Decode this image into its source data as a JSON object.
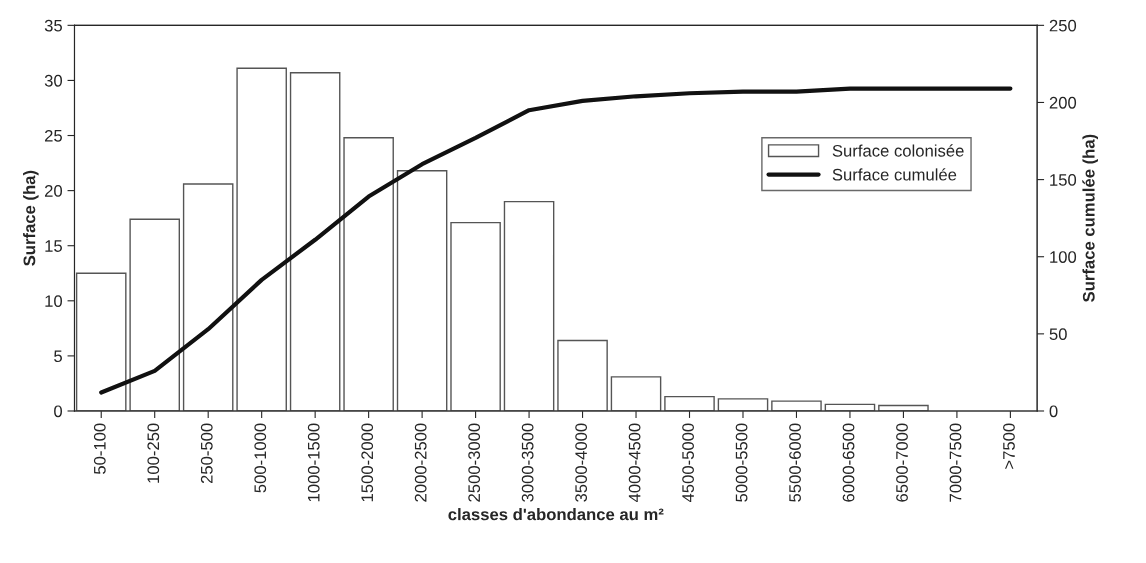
{
  "chart_data": {
    "type": "bar",
    "xlabel": "classes d'abondance au m²",
    "ylabel": "Surface (ha)",
    "y2label": "Surface cumulée (ha)",
    "categories": [
      "50-100",
      "100-250",
      "250-500",
      "500-1000",
      "1000-1500",
      "1500-2000",
      "2000-2500",
      "2500-3000",
      "3000-3500",
      "3500-4000",
      "4000-4500",
      "4500-5000",
      "5000-5500",
      "5500-6000",
      "6000-6500",
      "6500-7000",
      "7000-7500",
      ">7500"
    ],
    "series": [
      {
        "name": "Surface colonisée",
        "color": "#ffffff",
        "values": [
          12.5,
          17.4,
          20.6,
          31.1,
          30.7,
          24.8,
          21.8,
          17.1,
          19.0,
          6.4,
          3.1,
          1.3,
          1.1,
          0.9,
          0.6,
          0.5,
          null,
          null
        ]
      },
      {
        "name": "Surface cumulée",
        "type": "line",
        "axis": "y2",
        "color": "#111111",
        "values": [
          12,
          26,
          53,
          85,
          111,
          139,
          160,
          177,
          195,
          201,
          204,
          206,
          207,
          207,
          209,
          209,
          209,
          209
        ]
      }
    ],
    "ylim": [
      0,
      35
    ],
    "yticks": [
      0,
      5,
      10,
      15,
      20,
      25,
      30,
      35
    ],
    "y2lim": [
      0,
      250
    ],
    "y2ticks": [
      0,
      50,
      100,
      150,
      200,
      250
    ],
    "grid": false,
    "legend": "right"
  }
}
